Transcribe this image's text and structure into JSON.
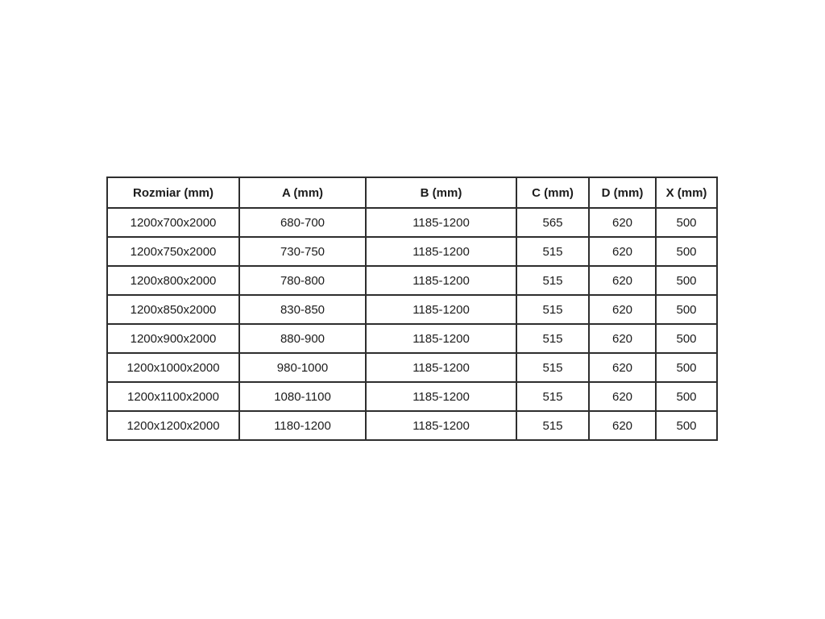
{
  "style": {
    "border_color": "#2e2e2e",
    "text_color": "#1c1c1c",
    "background_color": "#ffffff"
  },
  "chart_data": {
    "type": "table",
    "title": "",
    "headers": [
      "Rozmiar (mm)",
      "A (mm)",
      "B (mm)",
      "C (mm)",
      "D (mm)",
      "X (mm)"
    ],
    "rows": [
      [
        "1200x700x2000",
        "680-700",
        "1185-1200",
        "565",
        "620",
        "500"
      ],
      [
        "1200x750x2000",
        "730-750",
        "1185-1200",
        "515",
        "620",
        "500"
      ],
      [
        "1200x800x2000",
        "780-800",
        "1185-1200",
        "515",
        "620",
        "500"
      ],
      [
        "1200x850x2000",
        "830-850",
        "1185-1200",
        "515",
        "620",
        "500"
      ],
      [
        "1200x900x2000",
        "880-900",
        "1185-1200",
        "515",
        "620",
        "500"
      ],
      [
        "1200x1000x2000",
        "980-1000",
        "1185-1200",
        "515",
        "620",
        "500"
      ],
      [
        "1200x1100x2000",
        "1080-1100",
        "1185-1200",
        "515",
        "620",
        "500"
      ],
      [
        "1200x1200x2000",
        "1180-1200",
        "1185-1200",
        "515",
        "620",
        "500"
      ]
    ]
  }
}
